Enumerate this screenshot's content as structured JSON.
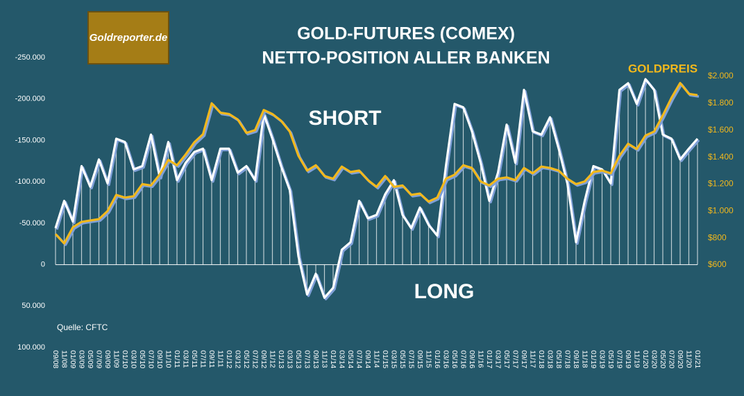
{
  "logo": "Goldreporter.de",
  "chart_data": {
    "type": "line",
    "title": "GOLD-FUTURES (COMEX)",
    "subtitle": "NETTO-POSITION ALLER BANKEN",
    "annotations": [
      "SHORT",
      "LONG",
      "Quelle: CFTC"
    ],
    "categories": [
      "09/08",
      "11/08",
      "01/09",
      "03/09",
      "05/09",
      "07/09",
      "09/09",
      "11/09",
      "01/10",
      "03/10",
      "05/10",
      "07/10",
      "09/10",
      "11/10",
      "01/11",
      "03/11",
      "05/11",
      "07/11",
      "09/11",
      "11/11",
      "01/12",
      "03/12",
      "05/12",
      "07/12",
      "09/12",
      "11/12",
      "01/13",
      "03/13",
      "05/13",
      "07/13",
      "09/13",
      "11/13",
      "01/14",
      "03/14",
      "05/14",
      "07/14",
      "09/14",
      "11/14",
      "01/15",
      "03/15",
      "05/15",
      "07/15",
      "09/15",
      "11/15",
      "01/16",
      "03/16",
      "05/16",
      "07/16",
      "09/16",
      "11/16",
      "01/17",
      "03/17",
      "05/17",
      "07/17",
      "09/17",
      "11/17",
      "01/18",
      "03/18",
      "05/18",
      "07/18",
      "09/18",
      "11/18",
      "01/19",
      "03/19",
      "05/19",
      "07/19",
      "09/19",
      "11/19",
      "01/20",
      "03/20",
      "05/20",
      "07/20",
      "09/20",
      "11/20",
      "01/21"
    ],
    "series": [
      {
        "color": "#ffffff",
        "values": [
          -44000,
          -77000,
          -52000,
          -119000,
          -94000,
          -127000,
          -98000,
          -152000,
          -148000,
          -115000,
          -119000,
          -157000,
          -106000,
          -148000,
          -102000,
          -123000,
          -136000,
          -140000,
          -102000,
          -140000,
          -140000,
          -111000,
          -119000,
          -102000,
          -182000,
          -152000,
          -119000,
          -90000,
          -10000,
          36000,
          11000,
          40000,
          28000,
          -18000,
          -27000,
          -77000,
          -56000,
          -60000,
          -85000,
          -102000,
          -60000,
          -44000,
          -69000,
          -48000,
          -35000,
          -119000,
          -194000,
          -190000,
          -161000,
          -123000,
          -77000,
          -111000,
          -169000,
          -123000,
          -211000,
          -161000,
          -157000,
          -178000,
          -140000,
          -98000,
          -27000,
          -77000,
          -119000,
          -115000,
          -98000,
          -211000,
          -219000,
          -194000,
          -224000,
          -211000,
          -157000,
          -152000,
          -127000,
          -140000,
          -152000
        ]
      },
      {
        "name": "GOLDPREIS",
        "color": "#f2b81c",
        "axis": "y2",
        "values": [
          830,
          760,
          880,
          920,
          930,
          940,
          1000,
          1120,
          1100,
          1110,
          1200,
          1190,
          1270,
          1380,
          1340,
          1420,
          1510,
          1570,
          1800,
          1730,
          1720,
          1680,
          1580,
          1600,
          1750,
          1720,
          1670,
          1590,
          1410,
          1300,
          1340,
          1260,
          1240,
          1330,
          1290,
          1300,
          1230,
          1180,
          1260,
          1180,
          1190,
          1120,
          1130,
          1070,
          1100,
          1240,
          1270,
          1340,
          1320,
          1220,
          1190,
          1240,
          1250,
          1230,
          1320,
          1280,
          1330,
          1320,
          1300,
          1240,
          1200,
          1220,
          1290,
          1300,
          1280,
          1410,
          1500,
          1460,
          1560,
          1590,
          1710,
          1840,
          1950,
          1870,
          1860
        ]
      }
    ],
    "ylim": [
      -250000,
      100000
    ],
    "yticks": [
      {
        "value": -250000,
        "label": "-250.000"
      },
      {
        "value": -200000,
        "label": "-200.000"
      },
      {
        "value": -150000,
        "label": "-150.000"
      },
      {
        "value": -100000,
        "label": "-100.000"
      },
      {
        "value": -50000,
        "label": "-50.000"
      },
      0,
      {
        "value": 50000,
        "label": "50.000"
      },
      {
        "value": 100000,
        "label": "100.000"
      }
    ],
    "y2lim": [
      -12,
      2139
    ],
    "y2ticks": [
      {
        "value": 600,
        "label": "$600"
      },
      {
        "value": 800,
        "label": "$800"
      },
      {
        "value": 1000,
        "label": "$1.000"
      },
      {
        "value": 1200,
        "label": "$1.200"
      },
      {
        "value": 1400,
        "label": "$1.400"
      },
      {
        "value": 1600,
        "label": "$1.600"
      },
      {
        "value": 1800,
        "label": "$1.800"
      },
      {
        "value": 2000,
        "label": "$2.000"
      }
    ],
    "inverted_y": true,
    "grid": false
  }
}
